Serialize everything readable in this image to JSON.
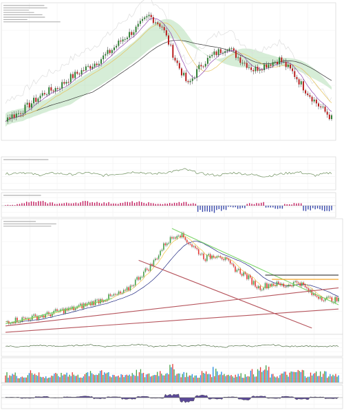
{
  "chart_data": [
    {
      "type": "line",
      "role": "upper-price-panel",
      "title": "",
      "xlabel": "",
      "ylabel": "",
      "style": "candlestick-with-ichimoku-cloud-and-moving-averages",
      "grid": true,
      "legend": "none",
      "colors": {
        "up": "#2e7d32",
        "down": "#b71c1c",
        "cloud_green": "#a5d6a7",
        "cloud_red": "#ef9a9a"
      },
      "x": [
        0,
        4,
        8,
        12,
        16,
        20,
        24,
        28,
        32,
        36,
        40,
        44,
        48,
        52,
        56,
        60,
        64,
        68,
        72,
        76,
        80,
        84,
        88,
        92,
        96,
        100
      ],
      "ylim": [
        0,
        100
      ],
      "series": [
        {
          "values": [
            14,
            18,
            26,
            34,
            38,
            46,
            52,
            58,
            66,
            76,
            84,
            94,
            86,
            60,
            40,
            56,
            64,
            70,
            60,
            52,
            56,
            60,
            50,
            36,
            24,
            14
          ]
        }
      ]
    },
    {
      "type": "line",
      "role": "upper-oscillator-panel",
      "title": "",
      "grid": true,
      "legend": "none",
      "x": [
        0,
        5,
        10,
        15,
        20,
        25,
        30,
        35,
        40,
        45,
        50,
        55,
        60,
        65,
        70,
        75,
        80,
        85,
        90,
        95,
        100
      ],
      "ylim": [
        0,
        100
      ],
      "series": [
        {
          "values": [
            50,
            58,
            46,
            54,
            48,
            56,
            44,
            52,
            60,
            50,
            58,
            70,
            52,
            44,
            56,
            48,
            40,
            52,
            58,
            44,
            56
          ]
        }
      ]
    },
    {
      "type": "bar",
      "role": "upper-histogram-panel",
      "title": "",
      "grid": true,
      "legend": "none",
      "ylim": [
        -100,
        100
      ],
      "series": [
        {
          "values": [
            10,
            30,
            50,
            55,
            40,
            30,
            35,
            45,
            55,
            50,
            40,
            35,
            45,
            50,
            40,
            30,
            25,
            35,
            45,
            30,
            -70,
            -85,
            -60,
            -20,
            -40,
            30,
            40,
            -30,
            -50,
            20,
            30,
            -60,
            -40,
            -70,
            -55
          ]
        }
      ]
    },
    {
      "type": "line",
      "role": "lower-price-panel",
      "title": "",
      "style": "candlestick-with-trendlines",
      "grid": true,
      "legend": "none",
      "x": [
        0,
        4,
        8,
        12,
        16,
        20,
        24,
        28,
        32,
        36,
        40,
        44,
        48,
        52,
        56,
        60,
        64,
        68,
        72,
        76,
        80,
        84,
        88,
        92,
        96,
        100
      ],
      "ylim": [
        0,
        100
      ],
      "series": [
        {
          "values": [
            8,
            10,
            12,
            14,
            18,
            20,
            24,
            28,
            32,
            36,
            50,
            62,
            82,
            92,
            80,
            68,
            72,
            60,
            52,
            40,
            44,
            42,
            46,
            34,
            30,
            28
          ]
        }
      ]
    },
    {
      "type": "line",
      "role": "lower-oscillator-panel",
      "title": "",
      "grid": true,
      "legend": "none",
      "x": [
        0,
        5,
        10,
        15,
        20,
        25,
        30,
        35,
        40,
        45,
        50,
        55,
        60,
        65,
        70,
        75,
        80,
        85,
        90,
        95,
        100
      ],
      "ylim": [
        0,
        100
      ],
      "series": [
        {
          "values": [
            50,
            44,
            56,
            48,
            52,
            60,
            46,
            54,
            62,
            44,
            56,
            50,
            58,
            40,
            54,
            48,
            60,
            46,
            52,
            44,
            50
          ]
        }
      ]
    },
    {
      "type": "bar",
      "role": "lower-volume-panel",
      "title": "",
      "legend": "none",
      "ylim": [
        0,
        100
      ],
      "series": [
        {
          "values": [
            40,
            25,
            60,
            20,
            35,
            50,
            30,
            45,
            70,
            25,
            40,
            55,
            35,
            60,
            80,
            45,
            30,
            50,
            65,
            40,
            35,
            55,
            75,
            30,
            45,
            60,
            40,
            50,
            35,
            65
          ]
        }
      ]
    },
    {
      "type": "area",
      "role": "lower-histogram-panel",
      "title": "",
      "legend": "none",
      "ylim": [
        -100,
        100
      ],
      "series": [
        {
          "values": [
            5,
            -10,
            15,
            -5,
            10,
            20,
            -15,
            10,
            -20,
            15,
            -10,
            40,
            -60,
            30,
            -20,
            10,
            -30,
            20,
            -10,
            15,
            -25,
            10,
            -15,
            5
          ]
        }
      ]
    }
  ]
}
